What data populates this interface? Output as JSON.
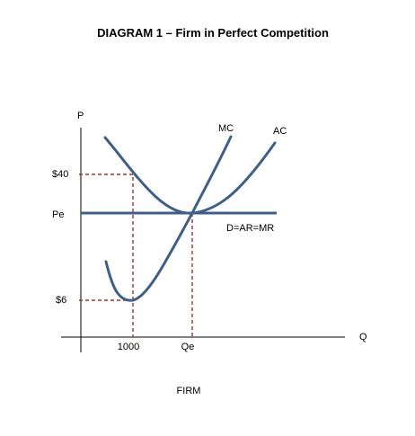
{
  "diagram": {
    "title": "DIAGRAM 1 – Firm in Perfect Competition",
    "caption": "FIRM",
    "axes": {
      "y_label": "P",
      "x_label": "Q"
    },
    "price_labels": {
      "p40": "$40",
      "pe": "Pe",
      "p6": "$6"
    },
    "quantity_labels": {
      "q1000": "1000",
      "qe": "Qe"
    },
    "curves": {
      "mc": "MC",
      "ac": "AC",
      "demand": "D=AR=MR"
    },
    "colors": {
      "curves": "#3f5f87",
      "guides": "#a0302a",
      "axes": "#000000"
    }
  }
}
